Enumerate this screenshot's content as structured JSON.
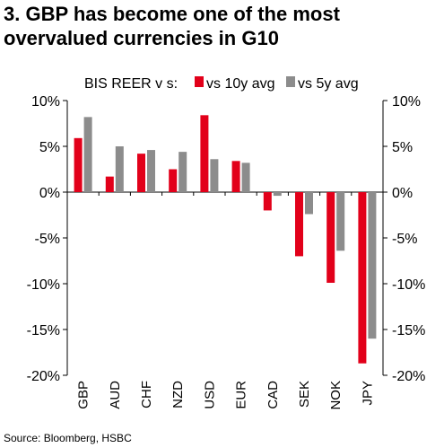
{
  "title_lines": [
    "3. GBP has become one of the most",
    "overvalued currencies in G10"
  ],
  "source": "Source: Bloomberg, HSBC",
  "colors": {
    "series1": "#e2001a",
    "series2": "#8c8c8c",
    "axis": "#000000"
  },
  "chart_data": {
    "type": "bar",
    "legend_prefix": "BIS REER v s:",
    "legend_position": "top",
    "categories": [
      "GBP",
      "AUD",
      "CHF",
      "NZD",
      "USD",
      "EUR",
      "CAD",
      "SEK",
      "NOK",
      "JPY"
    ],
    "series": [
      {
        "name": "vs 10y avg",
        "values": [
          5.9,
          1.7,
          4.2,
          2.5,
          8.4,
          3.4,
          -2.0,
          -7.0,
          -9.9,
          -18.7
        ]
      },
      {
        "name": "vs 5y avg",
        "values": [
          8.2,
          5.0,
          4.6,
          4.4,
          3.6,
          3.2,
          -0.4,
          -2.4,
          -6.4,
          -16.0
        ]
      }
    ],
    "y_ticks": [
      10,
      5,
      0,
      -5,
      -10,
      -15,
      -20
    ],
    "y_tick_labels": [
      "10%",
      "5%",
      "0%",
      "-5%",
      "-10%",
      "-15%",
      "-20%"
    ],
    "ylim": [
      -20,
      10
    ],
    "grid": false,
    "dual_axis_labels": true
  }
}
